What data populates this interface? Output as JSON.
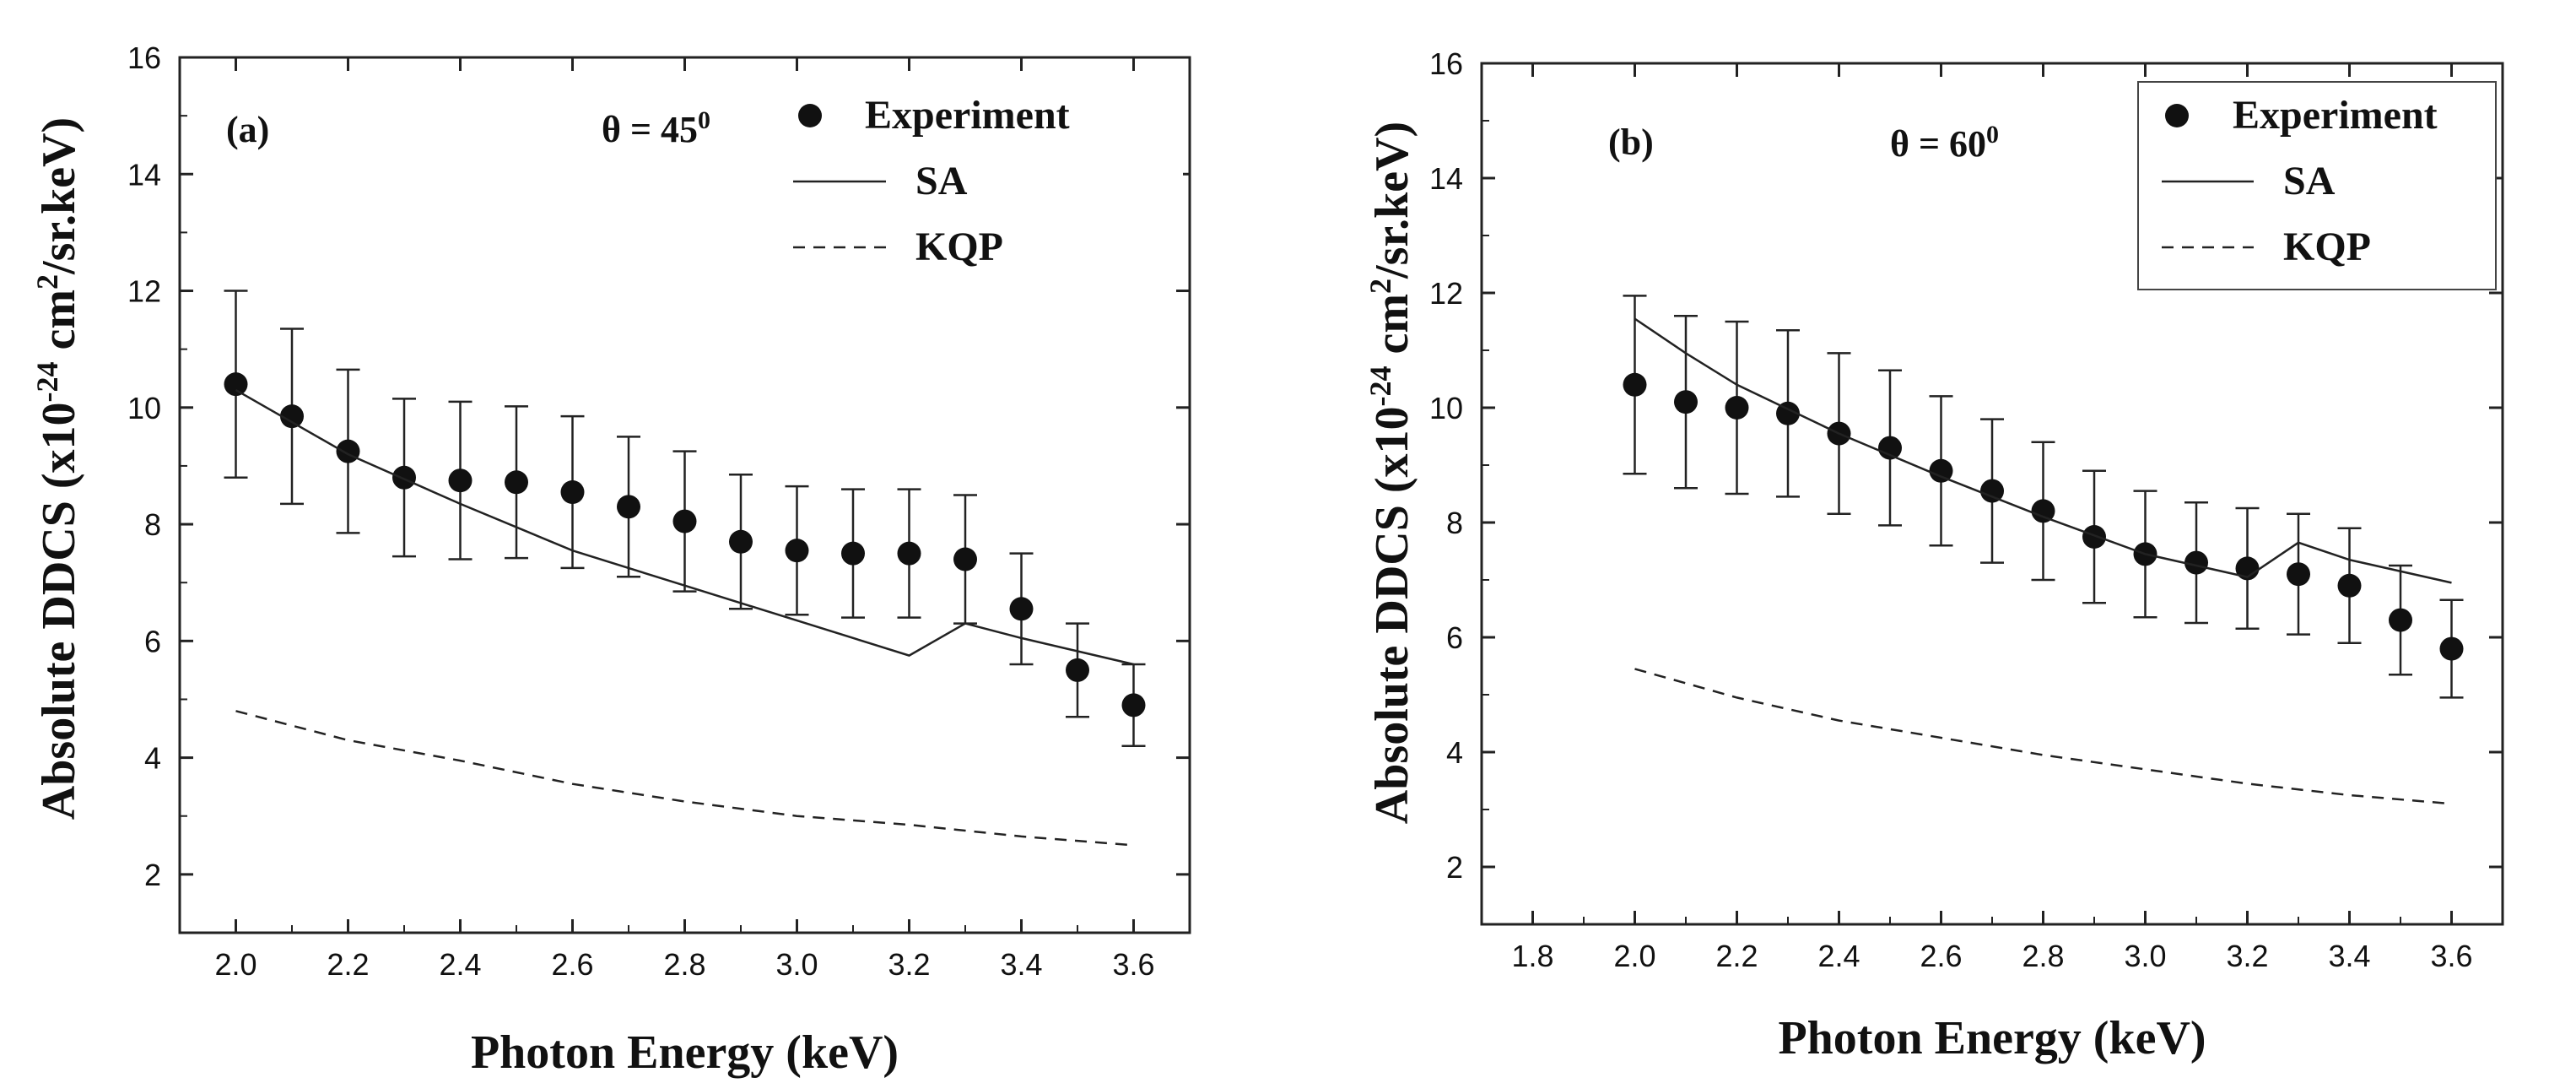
{
  "chart_data": [
    {
      "type": "scatter",
      "panel_label": "(a)",
      "angle_text": "θ = 45",
      "angle_sup": "0",
      "xlabel": "Photon Energy (keV)",
      "ylabel_parts": [
        "Absolute DDCS (x10",
        "-24",
        " cm",
        "2",
        "/sr.keV)"
      ],
      "xlim": [
        1.9,
        3.7
      ],
      "ylim": [
        1,
        16
      ],
      "xticks": [
        2.0,
        2.2,
        2.4,
        2.6,
        2.8,
        3.0,
        3.2,
        3.4,
        3.6
      ],
      "xtick_labels": [
        "2.0",
        "2.2",
        "2.4",
        "2.6",
        "2.8",
        "3.0",
        "3.2",
        "3.4",
        "3.6"
      ],
      "yticks": [
        2,
        4,
        6,
        8,
        10,
        12,
        14,
        16
      ],
      "ytick_labels": [
        "2",
        "4",
        "6",
        "8",
        "10",
        "12",
        "14",
        "16"
      ],
      "legend": {
        "position": "top-right",
        "entries": [
          "Experiment",
          "SA",
          "KQP"
        ]
      },
      "series": [
        {
          "name": "Experiment",
          "style": "markers-errorbars",
          "x": [
            2.0,
            2.1,
            2.2,
            2.3,
            2.4,
            2.5,
            2.6,
            2.7,
            2.8,
            2.9,
            3.0,
            3.1,
            3.2,
            3.3,
            3.4,
            3.5,
            3.6
          ],
          "y": [
            10.4,
            9.85,
            9.25,
            8.8,
            8.75,
            8.72,
            8.55,
            8.3,
            8.05,
            7.7,
            7.55,
            7.5,
            7.5,
            7.4,
            6.55,
            5.5,
            4.9
          ],
          "err": [
            1.6,
            1.5,
            1.4,
            1.35,
            1.35,
            1.3,
            1.3,
            1.2,
            1.2,
            1.15,
            1.1,
            1.1,
            1.1,
            1.1,
            0.95,
            0.8,
            0.7
          ]
        },
        {
          "name": "SA",
          "style": "solid",
          "x": [
            2.0,
            2.2,
            2.4,
            2.6,
            2.8,
            3.0,
            3.2,
            3.3,
            3.4,
            3.6
          ],
          "y": [
            10.3,
            9.2,
            8.35,
            7.55,
            6.95,
            6.35,
            5.75,
            6.3,
            6.05,
            5.6
          ]
        },
        {
          "name": "KQP",
          "style": "dashed",
          "x": [
            2.0,
            2.2,
            2.4,
            2.6,
            2.8,
            3.0,
            3.2,
            3.4,
            3.6
          ],
          "y": [
            4.8,
            4.3,
            3.95,
            3.55,
            3.25,
            3.0,
            2.85,
            2.65,
            2.5
          ]
        }
      ]
    },
    {
      "type": "scatter",
      "panel_label": "(b)",
      "angle_text": "θ = 60",
      "angle_sup": "0",
      "xlabel": "Photon Energy (keV)",
      "ylabel_parts": [
        "Absolute DDCS (x10",
        "-24",
        " cm",
        "2",
        "/sr.keV)"
      ],
      "xlim": [
        1.7,
        3.7
      ],
      "ylim": [
        1,
        16
      ],
      "xticks": [
        1.8,
        2.0,
        2.2,
        2.4,
        2.6,
        2.8,
        3.0,
        3.2,
        3.4,
        3.6
      ],
      "xtick_labels": [
        "1.8",
        "2.0",
        "2.2",
        "2.4",
        "2.6",
        "2.8",
        "3.0",
        "3.2",
        "3.4",
        "3.6"
      ],
      "yticks": [
        2,
        4,
        6,
        8,
        10,
        12,
        14,
        16
      ],
      "ytick_labels": [
        "2",
        "4",
        "6",
        "8",
        "10",
        "12",
        "14",
        "16"
      ],
      "legend": {
        "position": "top-right",
        "entries": [
          "Experiment",
          "SA",
          "KQP"
        ]
      },
      "series": [
        {
          "name": "Experiment",
          "style": "markers-errorbars",
          "x": [
            2.0,
            2.1,
            2.2,
            2.3,
            2.4,
            2.5,
            2.6,
            2.7,
            2.8,
            2.9,
            3.0,
            3.1,
            3.2,
            3.3,
            3.4,
            3.5,
            3.6
          ],
          "y": [
            10.4,
            10.1,
            10.0,
            9.9,
            9.55,
            9.3,
            8.9,
            8.55,
            8.2,
            7.75,
            7.45,
            7.3,
            7.2,
            7.1,
            6.9,
            6.3,
            5.8
          ],
          "err": [
            1.55,
            1.5,
            1.5,
            1.45,
            1.4,
            1.35,
            1.3,
            1.25,
            1.2,
            1.15,
            1.1,
            1.05,
            1.05,
            1.05,
            1.0,
            0.95,
            0.85
          ]
        },
        {
          "name": "SA",
          "style": "solid",
          "x": [
            2.0,
            2.1,
            2.2,
            2.4,
            2.6,
            2.8,
            3.0,
            3.2,
            3.3,
            3.4,
            3.6
          ],
          "y": [
            11.55,
            10.95,
            10.4,
            9.55,
            8.8,
            8.1,
            7.45,
            7.05,
            7.65,
            7.35,
            6.95
          ]
        },
        {
          "name": "KQP",
          "style": "dashed",
          "x": [
            2.0,
            2.2,
            2.4,
            2.6,
            2.8,
            3.0,
            3.2,
            3.4,
            3.6
          ],
          "y": [
            5.45,
            4.95,
            4.55,
            4.25,
            3.95,
            3.7,
            3.45,
            3.25,
            3.1
          ]
        }
      ]
    }
  ]
}
